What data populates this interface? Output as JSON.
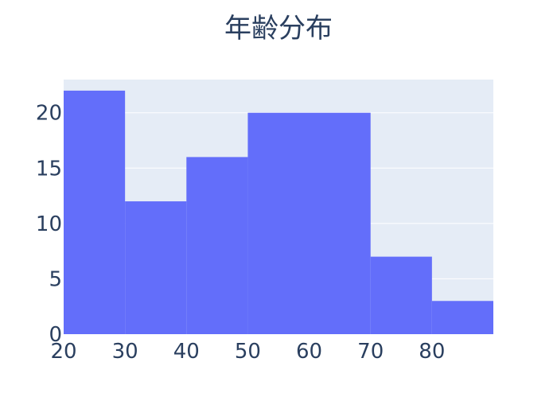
{
  "chart_data": {
    "type": "bar",
    "title": "年齢分布",
    "xlabel": "",
    "ylabel": "",
    "bins": [
      {
        "start": 20,
        "end": 30,
        "count": 22
      },
      {
        "start": 30,
        "end": 40,
        "count": 12
      },
      {
        "start": 40,
        "end": 50,
        "count": 16
      },
      {
        "start": 50,
        "end": 70,
        "count": 20
      },
      {
        "start": 70,
        "end": 80,
        "count": 7
      },
      {
        "start": 80,
        "end": 90,
        "count": 3
      }
    ],
    "xlim": [
      20,
      90
    ],
    "ylim": [
      0,
      23
    ],
    "xticks": [
      20,
      30,
      40,
      50,
      60,
      70,
      80
    ],
    "yticks": [
      0,
      5,
      10,
      15,
      20
    ],
    "colors": {
      "bar": "#636efa",
      "plot_bg": "#e5ecf6",
      "grid": "#ffffff",
      "text": "#2a3f5f"
    },
    "grid": true
  }
}
